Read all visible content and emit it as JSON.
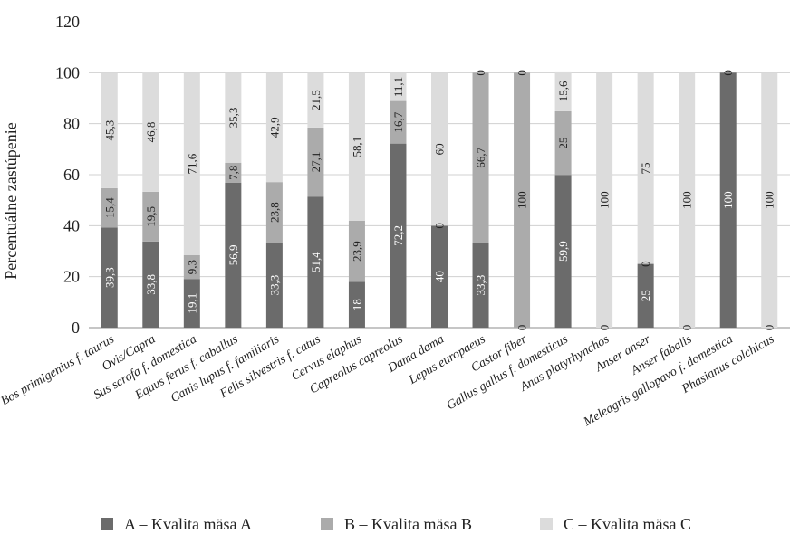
{
  "chart_data": {
    "type": "bar",
    "stacked": true,
    "ylabel": "Percentuálne zastúpenie",
    "xlabel": "",
    "ylim": [
      0,
      120
    ],
    "yticks": [
      "0",
      "20",
      "40",
      "60",
      "80",
      "100",
      "120"
    ],
    "grid": true,
    "legend_position": "bottom",
    "categories": [
      "Bos primigenius f. taurus",
      "Ovis/Capra",
      "Sus scrofa f. domestica",
      "Equus ferus f. caballus",
      "Canis lupus f. familiaris",
      "Felis silvestris f. catus",
      "Cervus elaphus",
      "Capreolus capreolus",
      "Dama dama",
      "Lepus europaeus",
      "Castor fiber",
      "Gallus gallus f. domesticus",
      "Anas platyrhynchos",
      "Anser anser",
      "Anser fabalis",
      "Meleagris gallopavo f. domestica",
      "Phasianus colchicus"
    ],
    "series": [
      {
        "name": "A – Kvalita mäsa A",
        "color": "#6b6b6b",
        "values": [
          39.3,
          33.8,
          19.1,
          56.9,
          33.3,
          51.4,
          18,
          72.2,
          40,
          33.3,
          0,
          59.9,
          0,
          25,
          0,
          100,
          0
        ],
        "labels": [
          "39,3",
          "33,8",
          "19,1",
          "56,9",
          "33,3",
          "51,4",
          "18",
          "72,2",
          "40",
          "33,3",
          "0",
          "59,9",
          "0",
          "25",
          "0",
          "100",
          "0"
        ]
      },
      {
        "name": "B – Kvalita mäsa B",
        "color": "#ababab",
        "values": [
          15.4,
          19.5,
          9.3,
          7.8,
          23.8,
          27.1,
          23.9,
          16.7,
          0,
          66.7,
          100,
          25,
          0,
          0,
          0,
          0,
          0
        ],
        "labels": [
          "15,4",
          "19,5",
          "9,3",
          "7,8",
          "23,8",
          "27,1",
          "23,9",
          "16,7",
          "0",
          "66,7",
          "100",
          "25",
          "",
          "0",
          "",
          "",
          ""
        ]
      },
      {
        "name": "C – Kvalita mäsa C",
        "color": "#dcdcdc",
        "values": [
          45.3,
          46.8,
          71.6,
          35.3,
          42.9,
          21.5,
          58.1,
          11.1,
          60,
          0,
          0,
          15.6,
          100,
          75,
          100,
          0,
          100
        ],
        "labels": [
          "45,3",
          "46,8",
          "71,6",
          "35,3",
          "42,9",
          "21,5",
          "58,1",
          "11,1",
          "60",
          "0",
          "0",
          "15,6",
          "100",
          "75",
          "100",
          "0",
          "100"
        ]
      }
    ]
  }
}
